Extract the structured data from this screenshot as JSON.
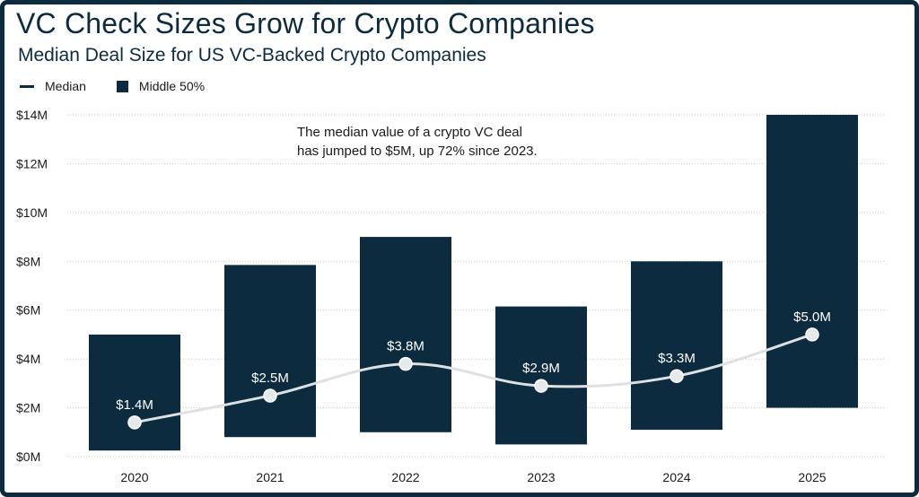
{
  "title": "VC Check Sizes Grow for Crypto Companies",
  "subtitle": "Median Deal Size for US VC-Backed Crypto Companies",
  "legend": {
    "median": "Median",
    "middle": "Middle 50%"
  },
  "annotation": [
    "The median value of a crypto VC deal",
    "has jumped to $5M, up 72% since 2023."
  ],
  "colors": {
    "bar": "#0d2b3e",
    "line": "#dde1e4",
    "grid": "#c8c8c8",
    "text": "#1a1a1a"
  },
  "chart_data": {
    "type": "bar",
    "categories": [
      "2020",
      "2021",
      "2022",
      "2023",
      "2024",
      "2025"
    ],
    "series": [
      {
        "name": "Middle 50%",
        "low": [
          0.25,
          0.8,
          1.0,
          0.5,
          1.1,
          2.0
        ],
        "high": [
          5.0,
          7.85,
          9.0,
          6.15,
          8.0,
          14.0
        ]
      },
      {
        "name": "Median",
        "values": [
          1.4,
          2.5,
          3.8,
          2.9,
          3.3,
          5.0
        ],
        "labels": [
          "$1.4M",
          "$2.5M",
          "$3.8M",
          "$2.9M",
          "$3.3M",
          "$5.0M"
        ]
      }
    ],
    "yticks": [
      "$0M",
      "$2M",
      "$4M",
      "$6M",
      "$8M",
      "$10M",
      "$12M",
      "$14M"
    ],
    "ylim": [
      0,
      14
    ],
    "grid": true,
    "legend_position": "top-left"
  }
}
